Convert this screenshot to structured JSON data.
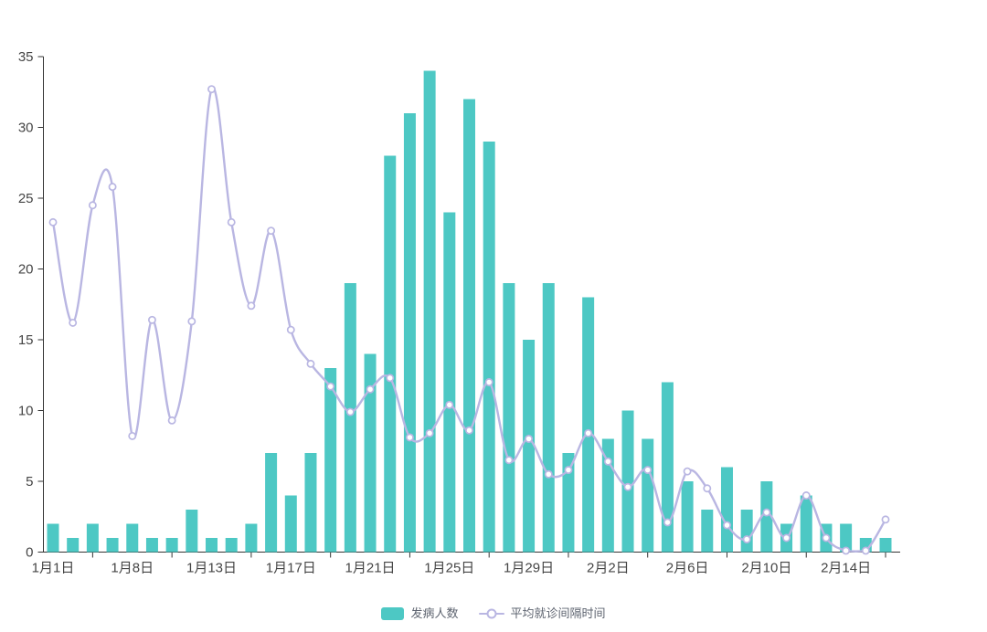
{
  "chart_data": {
    "type": "combo_bar_line",
    "title": "",
    "n_categories": 43,
    "grid": false,
    "legend_position": "bottom",
    "axis_color": "#333333",
    "label_color": "#454545",
    "x_axis": {
      "labels": [
        {
          "index": 0,
          "label": "1月1日"
        },
        {
          "index": 4,
          "label": "1月8日"
        },
        {
          "index": 8,
          "label": "1月13日"
        },
        {
          "index": 12,
          "label": "1月17日"
        },
        {
          "index": 16,
          "label": "1月21日"
        },
        {
          "index": 20,
          "label": "1月25日"
        },
        {
          "index": 24,
          "label": "1月29日"
        },
        {
          "index": 28,
          "label": "2月2日"
        },
        {
          "index": 32,
          "label": "2月6日"
        },
        {
          "index": 36,
          "label": "2月10日"
        },
        {
          "index": 40,
          "label": "2月14日"
        }
      ],
      "tick_indices": [
        2,
        6,
        10,
        14,
        18,
        22,
        26,
        30,
        34,
        38,
        42
      ]
    },
    "y_axis": {
      "min": 0,
      "max": 35,
      "ticks": [
        0,
        5,
        10,
        15,
        20,
        25,
        30,
        35
      ]
    },
    "series": [
      {
        "name": "发病人数",
        "type": "bar",
        "color": "#4dc8c4",
        "values": [
          2,
          1,
          2,
          1,
          2,
          1,
          1,
          3,
          1,
          1,
          2,
          7,
          4,
          7,
          13,
          19,
          14,
          28,
          31,
          34,
          24,
          32,
          29,
          19,
          15,
          19,
          7,
          18,
          8,
          10,
          8,
          12,
          5,
          3,
          6,
          3,
          5,
          2,
          4,
          2,
          2,
          1,
          1
        ]
      },
      {
        "name": "平均就诊间隔时间",
        "type": "line",
        "smooth": true,
        "marker": "empty_circle",
        "color": "#b9b6e2",
        "values": [
          23.3,
          16.2,
          24.5,
          25.8,
          8.2,
          16.4,
          9.3,
          16.3,
          32.7,
          23.3,
          17.4,
          22.7,
          15.7,
          13.3,
          11.7,
          9.9,
          11.5,
          12.3,
          8.1,
          8.4,
          10.4,
          8.6,
          12,
          6.5,
          8,
          5.5,
          5.8,
          8.4,
          6.4,
          4.6,
          5.8,
          2.1,
          5.7,
          4.5,
          1.9,
          0.9,
          2.8,
          1,
          4,
          1,
          0.1,
          0.1,
          2.3
        ]
      }
    ]
  }
}
